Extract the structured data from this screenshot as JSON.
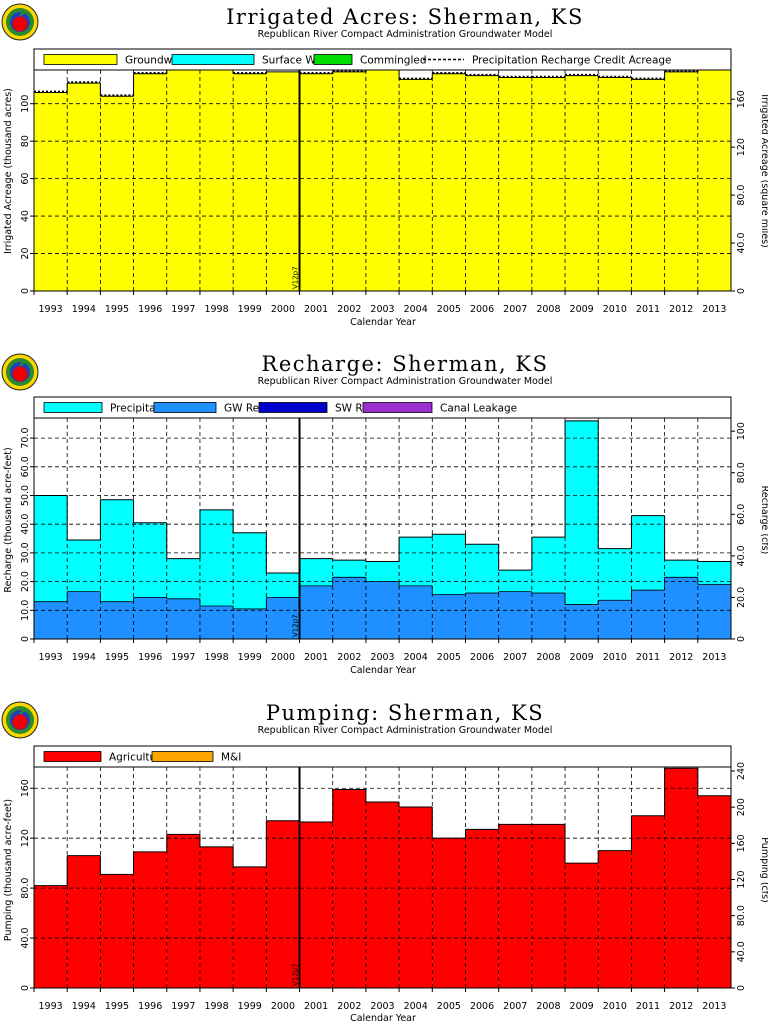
{
  "subtitle": "Republican River Compact Administration Groundwater Model",
  "xlabel": "Calendar Year",
  "marker_label": "V12p7",
  "years": [
    "1993",
    "1994",
    "1995",
    "1996",
    "1997",
    "1998",
    "1999",
    "2000",
    "2001",
    "2002",
    "2003",
    "2004",
    "2005",
    "2006",
    "2007",
    "2008",
    "2009",
    "2010",
    "2011",
    "2012",
    "2013"
  ],
  "chart_data": [
    {
      "type": "area",
      "id": "acres",
      "title": "Irrigated Acres: Sherman, KS",
      "ylabel": "Irrigated Acreage (thousand acres)",
      "y2label": "Irrigated Acreage (square miles)",
      "ylim": [
        0,
        118
      ],
      "yticks": [
        0,
        20,
        40,
        60,
        80,
        100
      ],
      "y2_factor": 1.5625,
      "y2ticks": [
        0,
        40,
        80,
        120,
        160
      ],
      "y2tick_labels": [
        "0",
        "40.0",
        "80.0",
        "120",
        "160"
      ],
      "marker_year": "2000",
      "legend": [
        "Groundwater",
        "Surface Water",
        "Commingled",
        "Precipitation Recharge Credit Acreage"
      ],
      "colors": {
        "Groundwater": "#ffff00",
        "Surface Water": "#00ffff",
        "Commingled": "#00dd00",
        "Precipitation Recharge Credit Acreage": "#000000"
      },
      "series": [
        {
          "name": "Groundwater",
          "values": [
            106,
            111,
            104,
            116,
            118,
            118,
            116,
            117,
            116,
            117,
            118,
            113,
            116,
            115,
            114,
            114,
            115,
            114,
            113,
            117,
            118
          ]
        },
        {
          "name": "Surface Water",
          "values": [
            0,
            0,
            0,
            0,
            0,
            0,
            0,
            0,
            0,
            0,
            0,
            0,
            0,
            0,
            0,
            0,
            0,
            0,
            0,
            0,
            0
          ]
        },
        {
          "name": "Commingled",
          "values": [
            0,
            0,
            0,
            0,
            0,
            0,
            0,
            0,
            0,
            0,
            0,
            0,
            0,
            0,
            0,
            0,
            0,
            0,
            0,
            0,
            0
          ]
        },
        {
          "name": "Precipitation Recharge Credit Acreage",
          "values": [
            106,
            111,
            104,
            116,
            118,
            118,
            116,
            118,
            116,
            117,
            118,
            113,
            116,
            115,
            114,
            114,
            115,
            114,
            113,
            117,
            118
          ]
        }
      ]
    },
    {
      "type": "area",
      "id": "recharge",
      "title": "Recharge: Sherman, KS",
      "ylabel": "Recharge (thousand acre-feet)",
      "y2label": "Recharge (cfs)",
      "ylim": [
        0,
        77
      ],
      "yticks": [
        0,
        10,
        20,
        30,
        40,
        50,
        60,
        70
      ],
      "ytick_labels": [
        "0",
        "10.0",
        "20.0",
        "30.0",
        "40.0",
        "50.0",
        "60.0",
        "70.0"
      ],
      "y2_factor": 1.381,
      "y2ticks": [
        0,
        20,
        40,
        60,
        80,
        100
      ],
      "y2tick_labels": [
        "0",
        "20.0",
        "40.0",
        "60.0",
        "80.0",
        "100"
      ],
      "marker_year": "2000",
      "legend": [
        "Precipitation",
        "GW Returns",
        "SW Returns",
        "Canal Leakage"
      ],
      "colors": {
        "Precipitation": "#00ffff",
        "GW Returns": "#1e90ff",
        "SW Returns": "#0000cc",
        "Canal Leakage": "#9b30d0"
      },
      "series": [
        {
          "name": "GW Returns",
          "values": [
            13,
            16.5,
            13,
            14.5,
            14,
            11.5,
            10.5,
            14.5,
            18.5,
            21.5,
            20,
            18.5,
            15.5,
            16,
            16.5,
            16,
            12,
            13.5,
            17,
            21.5,
            19
          ]
        },
        {
          "name": "Precipitation",
          "values": [
            37,
            18,
            35.5,
            26,
            14,
            33.5,
            26.5,
            8.5,
            9.5,
            6,
            7,
            17,
            21,
            17,
            7.5,
            19.5,
            64,
            18,
            26,
            6,
            8
          ]
        },
        {
          "name": "SW Returns",
          "values": [
            0,
            0,
            0,
            0,
            0,
            0,
            0,
            0,
            0,
            0,
            0,
            0,
            0,
            0,
            0,
            0,
            0,
            0,
            0,
            0,
            0
          ]
        },
        {
          "name": "Canal Leakage",
          "values": [
            0,
            0,
            0,
            0,
            0,
            0,
            0,
            0,
            0,
            0,
            0,
            0,
            0,
            0,
            0,
            0,
            0,
            0,
            0,
            0,
            0
          ]
        }
      ]
    },
    {
      "type": "area",
      "id": "pumping",
      "title": "Pumping: Sherman, KS",
      "ylabel": "Pumping (thousand acre-feet)",
      "y2label": "Pumping (cfs)",
      "ylim": [
        0,
        177
      ],
      "yticks": [
        0,
        40,
        80,
        120,
        160
      ],
      "ytick_labels": [
        "0",
        "40.0",
        "80.0",
        "120",
        "160"
      ],
      "y2_factor": 1.381,
      "y2ticks": [
        0,
        40,
        80,
        120,
        160,
        200,
        240
      ],
      "y2tick_labels": [
        "0",
        "40.0",
        "80.0",
        "120",
        "160",
        "200",
        "240"
      ],
      "marker_year": "2000",
      "legend": [
        "Agricultural",
        "M&I"
      ],
      "colors": {
        "Agricultural": "#ff0000",
        "M&I": "#ffa500"
      },
      "series": [
        {
          "name": "Agricultural",
          "values": [
            82,
            106,
            91,
            109,
            123,
            113,
            97,
            134,
            133,
            159,
            149,
            145,
            120,
            127,
            131,
            131,
            100,
            110,
            138,
            176,
            154
          ]
        },
        {
          "name": "M&I",
          "values": [
            0,
            0,
            0,
            0,
            0,
            0,
            0,
            0,
            0,
            0,
            0,
            0,
            0,
            0,
            0,
            0,
            0,
            0,
            0,
            0,
            0
          ]
        }
      ]
    }
  ]
}
